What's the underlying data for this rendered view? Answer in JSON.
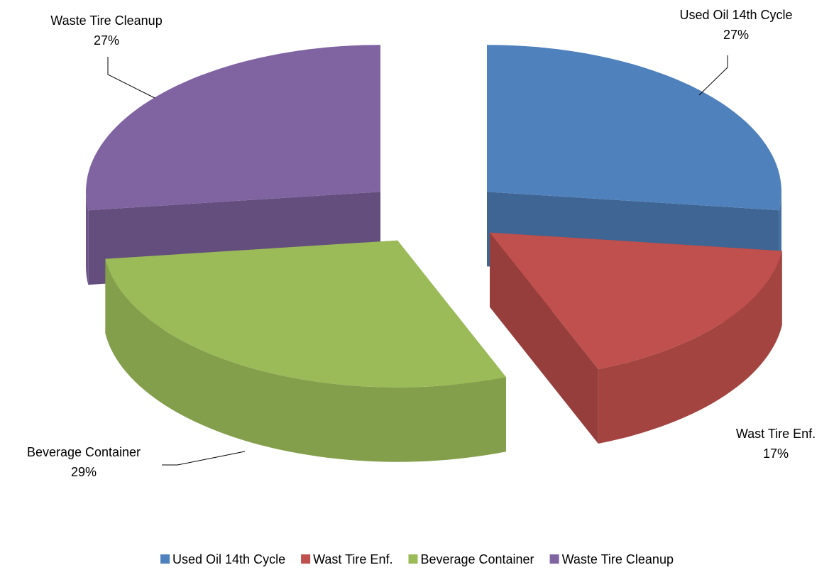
{
  "chart_data": {
    "type": "pie",
    "categories": [
      "Used Oil 14th Cycle",
      "Wast Tire Enf.",
      "Beverage Container",
      "Waste Tire Cleanup"
    ],
    "values": [
      27,
      17,
      29,
      27
    ],
    "value_labels": [
      "27%",
      "17%",
      "29%",
      "27%"
    ],
    "colors": [
      "#4f81bd",
      "#c0504d",
      "#9bbb59",
      "#8064a2"
    ],
    "legend": "bottom"
  }
}
